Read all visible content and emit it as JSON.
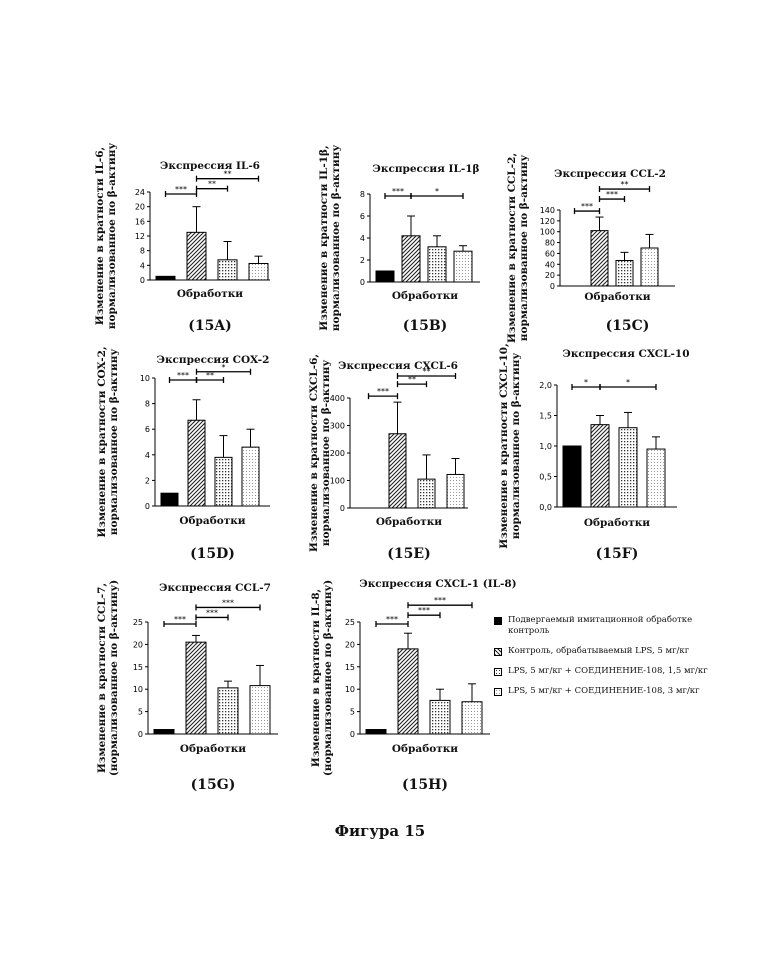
{
  "figure_caption": "Фигура 15",
  "legend": [
    {
      "label": "Подвергаемый имитационной обработке контроль",
      "fill": "solid"
    },
    {
      "label": "Контроль, обрабатываемый LPS, 5 мг/кг",
      "fill": "hatch"
    },
    {
      "label": "LPS, 5 мг/кг + СОЕДИНЕНИЕ-108, 1,5 мг/кг",
      "fill": "dots"
    },
    {
      "label": "LPS, 5 мг/кг + СОЕДИНЕНИЕ-108, 3 мг/кг",
      "fill": "light"
    }
  ],
  "chart_data": [
    {
      "id": "15A",
      "type": "bar",
      "title": "Экспрессия IL-6",
      "ylabel": "Изменение в кратности IL-6, нормализованное по β-актину",
      "xlabel": "Обработки",
      "panel_label": "(15A)",
      "ylim": [
        0,
        24
      ],
      "yticks": [
        "0",
        "4",
        "8",
        "12",
        "16",
        "20",
        "24"
      ],
      "values": [
        1,
        13,
        5.5,
        4.5
      ],
      "errors": [
        0,
        7,
        5,
        2
      ],
      "significance": [
        {
          "from": 0,
          "to": 1,
          "label": "***"
        },
        {
          "from": 1,
          "to": 2,
          "label": "**"
        },
        {
          "from": 1,
          "to": 3,
          "label": "**"
        }
      ]
    },
    {
      "id": "15B",
      "type": "bar",
      "title": "Экспрессия IL-1β",
      "ylabel": "Изменение в кратности IL-1β, нормализованное по β-актину",
      "xlabel": "Обработки",
      "panel_label": "(15B)",
      "ylim": [
        0,
        8
      ],
      "yticks": [
        "0",
        "2",
        "4",
        "6",
        "8"
      ],
      "values": [
        1,
        4.2,
        3.2,
        2.8
      ],
      "errors": [
        0,
        1.8,
        1,
        0.5
      ],
      "significance": [
        {
          "from": 0,
          "to": 1,
          "label": "***"
        },
        {
          "from": 1,
          "to": 3,
          "label": "*"
        }
      ]
    },
    {
      "id": "15C",
      "type": "bar",
      "title": "Экспрессия CCL-2",
      "ylabel": "Изменение в кратности CCL-2, нормализованное по β-актину",
      "xlabel": "Обработки",
      "panel_label": "(15C)",
      "ylim": [
        0,
        140
      ],
      "yticks": [
        "0",
        "20",
        "40",
        "60",
        "80",
        "100",
        "120",
        "140"
      ],
      "values": [
        0,
        102,
        47,
        70
      ],
      "errors": [
        0,
        25,
        15,
        25
      ],
      "significance": [
        {
          "from": 0,
          "to": 1,
          "label": "***"
        },
        {
          "from": 1,
          "to": 2,
          "label": "***"
        },
        {
          "from": 1,
          "to": 3,
          "label": "**"
        }
      ]
    },
    {
      "id": "15D",
      "type": "bar",
      "title": "Экспрессия COX-2",
      "ylabel": "Изменение в кратности COX-2, нормализованное по β-актину",
      "xlabel": "Обработки",
      "panel_label": "(15D)",
      "ylim": [
        0,
        10
      ],
      "yticks": [
        "0",
        "2",
        "4",
        "6",
        "8",
        "10"
      ],
      "values": [
        1,
        6.7,
        3.8,
        4.6
      ],
      "errors": [
        0,
        1.6,
        1.7,
        1.4
      ],
      "significance": [
        {
          "from": 0,
          "to": 1,
          "label": "***"
        },
        {
          "from": 1,
          "to": 2,
          "label": "**"
        },
        {
          "from": 1,
          "to": 3,
          "label": "*"
        }
      ]
    },
    {
      "id": "15E",
      "type": "bar",
      "title": "Экспрессия CXCL-6",
      "ylabel": "Изменение в кратности CXCL-6, нормализованное по β-актину",
      "xlabel": "Обработки",
      "panel_label": "(15E)",
      "ylim": [
        0,
        400
      ],
      "yticks": [
        "0",
        "100",
        "200",
        "300",
        "400"
      ],
      "values": [
        0,
        270,
        105,
        122
      ],
      "errors": [
        0,
        115,
        88,
        58
      ],
      "significance": [
        {
          "from": 0,
          "to": 1,
          "label": "***"
        },
        {
          "from": 1,
          "to": 2,
          "label": "**"
        },
        {
          "from": 1,
          "to": 3,
          "label": "**"
        }
      ]
    },
    {
      "id": "15F",
      "type": "bar",
      "title": "Экспрессия CXCL-10",
      "ylabel": "Изменение в кратности CXCL-10, нормализованное по β-актину",
      "xlabel": "Обработки",
      "panel_label": "(15F)",
      "ylim": [
        0,
        2
      ],
      "yticks": [
        "0,0",
        "0,5",
        "1,0",
        "1,5",
        "2,0"
      ],
      "values": [
        1,
        1.35,
        1.3,
        0.95
      ],
      "errors": [
        0,
        0.15,
        0.25,
        0.2
      ],
      "significance": [
        {
          "from": 0,
          "to": 1,
          "label": "*"
        },
        {
          "from": 1,
          "to": 3,
          "label": "*"
        }
      ]
    },
    {
      "id": "15G",
      "type": "bar",
      "title": "Экспрессия CCL-7",
      "ylabel": "Изменение в кратности CCL-7, (нормализованное по β-актину)",
      "xlabel": "Обработки",
      "panel_label": "(15G)",
      "ylim": [
        0,
        25
      ],
      "yticks": [
        "0",
        "5",
        "10",
        "15",
        "20",
        "25"
      ],
      "values": [
        1,
        20.5,
        10.3,
        10.8
      ],
      "errors": [
        0,
        1.5,
        1.5,
        4.5
      ],
      "significance": [
        {
          "from": 0,
          "to": 1,
          "label": "***"
        },
        {
          "from": 1,
          "to": 2,
          "label": "***"
        },
        {
          "from": 1,
          "to": 3,
          "label": "***"
        }
      ]
    },
    {
      "id": "15H",
      "type": "bar",
      "title": "Экспрессия CXCL-1 (IL-8)",
      "ylabel": "Изменение в кратности IL-8, (нормализованное по β-актину)",
      "xlabel": "Обработки",
      "panel_label": "(15H)",
      "ylim": [
        0,
        25
      ],
      "yticks": [
        "0",
        "5",
        "10",
        "15",
        "20",
        "25"
      ],
      "values": [
        1,
        19,
        7.5,
        7.2
      ],
      "errors": [
        0,
        3.5,
        2.5,
        4
      ],
      "significance": [
        {
          "from": 0,
          "to": 1,
          "label": "***"
        },
        {
          "from": 1,
          "to": 2,
          "label": "***"
        },
        {
          "from": 1,
          "to": 3,
          "label": "***"
        }
      ]
    }
  ]
}
